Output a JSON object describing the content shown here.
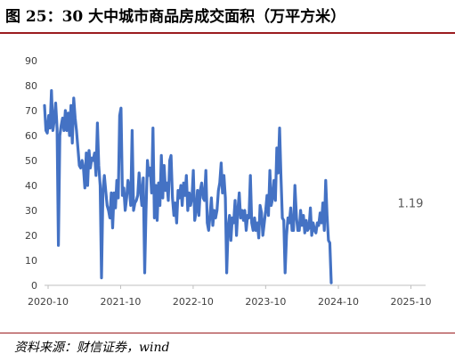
{
  "title": "图 25：30 大中城市商品房成交面积（万平方米）",
  "source": "资料来源：财信证券，wind",
  "colors": {
    "series": "#4472c4",
    "title_rule": "#9b1c1f",
    "axis_text": "#404040",
    "annotation": "#595959"
  },
  "chart_data": {
    "type": "line",
    "title": "30 大中城市商品房成交面积（万平方米）",
    "xlabel": "",
    "ylabel": "",
    "ylim": [
      0,
      90
    ],
    "yticks": [
      0,
      10,
      20,
      30,
      40,
      50,
      60,
      70,
      80,
      90
    ],
    "xlim": [
      "2020-09-13",
      "2025-12-14"
    ],
    "xtick_labels": [
      "2020-10",
      "2021-10",
      "2022-10",
      "2023-10",
      "2024-10",
      "2025-10"
    ],
    "grid": false,
    "legend": "none",
    "annotation": {
      "text": "1.19",
      "x": "2025-12-07",
      "y": 1.19
    },
    "series": [
      {
        "values": [
          [
            "2020-09-13",
            72
          ],
          [
            "2020-09-20",
            62
          ],
          [
            "2020-09-27",
            61
          ],
          [
            "2020-10-04",
            68
          ],
          [
            "2020-10-11",
            63
          ],
          [
            "2020-10-18",
            78
          ],
          [
            "2020-10-25",
            62
          ],
          [
            "2020-11-01",
            66
          ],
          [
            "2020-11-08",
            73
          ],
          [
            "2020-11-15",
            63
          ],
          [
            "2020-11-22",
            16
          ],
          [
            "2020-11-29",
            60
          ],
          [
            "2020-12-06",
            64
          ],
          [
            "2020-12-13",
            67
          ],
          [
            "2020-12-20",
            62
          ],
          [
            "2020-12-27",
            70
          ],
          [
            "2021-01-03",
            62
          ],
          [
            "2021-01-10",
            69
          ],
          [
            "2021-01-17",
            60
          ],
          [
            "2021-01-24",
            72
          ],
          [
            "2021-01-31",
            57
          ],
          [
            "2021-02-07",
            75
          ],
          [
            "2021-02-14",
            67
          ],
          [
            "2021-02-21",
            62
          ],
          [
            "2021-02-28",
            55
          ],
          [
            "2021-03-07",
            48
          ],
          [
            "2021-03-14",
            47
          ],
          [
            "2021-03-21",
            50
          ],
          [
            "2021-03-28",
            47
          ],
          [
            "2021-04-04",
            39
          ],
          [
            "2021-04-11",
            53
          ],
          [
            "2021-04-18",
            40
          ],
          [
            "2021-04-25",
            54
          ],
          [
            "2021-05-02",
            47
          ],
          [
            "2021-05-09",
            51
          ],
          [
            "2021-05-16",
            50
          ],
          [
            "2021-05-23",
            53
          ],
          [
            "2021-05-30",
            44
          ],
          [
            "2021-06-06",
            65
          ],
          [
            "2021-06-13",
            48
          ],
          [
            "2021-06-20",
            40
          ],
          [
            "2021-06-27",
            3
          ],
          [
            "2021-07-04",
            38
          ],
          [
            "2021-07-11",
            44
          ],
          [
            "2021-07-18",
            38
          ],
          [
            "2021-07-25",
            32
          ],
          [
            "2021-08-01",
            30
          ],
          [
            "2021-08-08",
            27
          ],
          [
            "2021-08-15",
            37
          ],
          [
            "2021-08-22",
            23
          ],
          [
            "2021-08-29",
            37
          ],
          [
            "2021-09-05",
            31
          ],
          [
            "2021-09-12",
            42
          ],
          [
            "2021-09-19",
            35
          ],
          [
            "2021-09-26",
            68
          ],
          [
            "2021-10-03",
            71
          ],
          [
            "2021-10-10",
            36
          ],
          [
            "2021-10-17",
            39
          ],
          [
            "2021-10-24",
            30
          ],
          [
            "2021-10-31",
            35
          ],
          [
            "2021-11-07",
            42
          ],
          [
            "2021-11-14",
            39
          ],
          [
            "2021-11-21",
            32
          ],
          [
            "2021-11-28",
            62
          ],
          [
            "2021-12-05",
            30
          ],
          [
            "2021-12-12",
            33
          ],
          [
            "2021-12-19",
            34
          ],
          [
            "2021-12-26",
            36
          ],
          [
            "2022-01-02",
            45
          ],
          [
            "2022-01-09",
            38
          ],
          [
            "2022-01-16",
            32
          ],
          [
            "2022-01-23",
            43
          ],
          [
            "2022-01-30",
            5
          ],
          [
            "2022-02-06",
            30
          ],
          [
            "2022-02-13",
            50
          ],
          [
            "2022-02-20",
            44
          ],
          [
            "2022-02-27",
            47
          ],
          [
            "2022-03-06",
            37
          ],
          [
            "2022-03-13",
            63
          ],
          [
            "2022-03-20",
            27
          ],
          [
            "2022-03-27",
            40
          ],
          [
            "2022-04-03",
            26
          ],
          [
            "2022-04-10",
            41
          ],
          [
            "2022-04-17",
            32
          ],
          [
            "2022-04-24",
            52
          ],
          [
            "2022-05-01",
            35
          ],
          [
            "2022-05-08",
            48
          ],
          [
            "2022-05-15",
            38
          ],
          [
            "2022-05-22",
            41
          ],
          [
            "2022-05-29",
            34
          ],
          [
            "2022-06-05",
            50
          ],
          [
            "2022-06-12",
            52
          ],
          [
            "2022-06-19",
            35
          ],
          [
            "2022-06-26",
            28
          ],
          [
            "2022-07-03",
            33
          ],
          [
            "2022-07-10",
            25
          ],
          [
            "2022-07-17",
            38
          ],
          [
            "2022-07-24",
            35
          ],
          [
            "2022-07-31",
            40
          ],
          [
            "2022-08-07",
            32
          ],
          [
            "2022-08-14",
            41
          ],
          [
            "2022-08-21",
            36
          ],
          [
            "2022-08-28",
            44
          ],
          [
            "2022-09-04",
            30
          ],
          [
            "2022-09-11",
            37
          ],
          [
            "2022-09-18",
            32
          ],
          [
            "2022-09-25",
            35
          ],
          [
            "2022-10-02",
            46
          ],
          [
            "2022-10-09",
            26
          ],
          [
            "2022-10-16",
            30
          ],
          [
            "2022-10-23",
            38
          ],
          [
            "2022-10-30",
            28
          ],
          [
            "2022-11-06",
            38
          ],
          [
            "2022-11-13",
            41
          ],
          [
            "2022-11-20",
            35
          ],
          [
            "2022-11-27",
            34
          ],
          [
            "2022-12-04",
            46
          ],
          [
            "2022-12-11",
            25
          ],
          [
            "2022-12-18",
            22
          ],
          [
            "2022-12-25",
            28
          ],
          [
            "2023-01-01",
            35
          ],
          [
            "2023-01-08",
            24
          ],
          [
            "2023-01-15",
            30
          ],
          [
            "2023-01-22",
            27
          ],
          [
            "2023-01-29",
            30
          ],
          [
            "2023-02-05",
            38
          ],
          [
            "2023-02-12",
            41
          ],
          [
            "2023-02-19",
            49
          ],
          [
            "2023-02-26",
            37
          ],
          [
            "2023-03-05",
            44
          ],
          [
            "2023-03-12",
            35
          ],
          [
            "2023-03-19",
            5
          ],
          [
            "2023-03-26",
            23
          ],
          [
            "2023-04-02",
            28
          ],
          [
            "2023-04-09",
            18
          ],
          [
            "2023-04-16",
            27
          ],
          [
            "2023-04-23",
            25
          ],
          [
            "2023-04-30",
            34
          ],
          [
            "2023-05-07",
            20
          ],
          [
            "2023-05-14",
            30
          ],
          [
            "2023-05-21",
            37
          ],
          [
            "2023-05-28",
            27
          ],
          [
            "2023-06-04",
            30
          ],
          [
            "2023-06-11",
            26
          ],
          [
            "2023-06-18",
            30
          ],
          [
            "2023-06-25",
            22
          ],
          [
            "2023-07-02",
            28
          ],
          [
            "2023-07-09",
            27
          ],
          [
            "2023-07-16",
            44
          ],
          [
            "2023-07-23",
            25
          ],
          [
            "2023-07-30",
            22
          ],
          [
            "2023-08-06",
            27
          ],
          [
            "2023-08-13",
            22
          ],
          [
            "2023-08-20",
            25
          ],
          [
            "2023-08-27",
            19
          ],
          [
            "2023-09-03",
            32
          ],
          [
            "2023-09-10",
            29
          ],
          [
            "2023-09-17",
            20
          ],
          [
            "2023-09-24",
            25
          ],
          [
            "2023-10-01",
            30
          ],
          [
            "2023-10-08",
            36
          ],
          [
            "2023-10-15",
            28
          ],
          [
            "2023-10-22",
            46
          ],
          [
            "2023-10-29",
            32
          ],
          [
            "2023-11-05",
            35
          ],
          [
            "2023-11-12",
            42
          ],
          [
            "2023-11-19",
            34
          ],
          [
            "2023-11-26",
            55
          ],
          [
            "2023-12-03",
            45
          ],
          [
            "2023-12-10",
            63
          ],
          [
            "2023-12-17",
            44
          ],
          [
            "2023-12-24",
            27
          ],
          [
            "2023-12-31",
            26
          ],
          [
            "2024-01-07",
            5
          ],
          [
            "2024-01-14",
            20
          ],
          [
            "2024-01-21",
            27
          ],
          [
            "2024-01-28",
            25
          ],
          [
            "2024-02-04",
            31
          ],
          [
            "2024-02-11",
            22
          ],
          [
            "2024-02-18",
            22
          ],
          [
            "2024-02-25",
            40
          ],
          [
            "2024-03-04",
            27
          ],
          [
            "2024-03-11",
            22
          ],
          [
            "2024-03-18",
            22
          ],
          [
            "2024-03-25",
            30
          ],
          [
            "2024-04-01",
            24
          ],
          [
            "2024-04-08",
            28
          ],
          [
            "2024-04-15",
            21
          ],
          [
            "2024-04-22",
            26
          ],
          [
            "2024-04-29",
            22
          ],
          [
            "2024-05-06",
            23
          ],
          [
            "2024-05-13",
            31
          ],
          [
            "2024-05-20",
            20
          ],
          [
            "2024-05-27",
            25
          ],
          [
            "2024-06-03",
            22
          ],
          [
            "2024-06-10",
            21
          ],
          [
            "2024-06-17",
            25
          ],
          [
            "2024-06-24",
            24
          ],
          [
            "2024-07-01",
            29
          ],
          [
            "2024-07-08",
            25
          ],
          [
            "2024-07-15",
            33
          ],
          [
            "2024-07-22",
            22
          ],
          [
            "2024-07-29",
            42
          ],
          [
            "2024-08-05",
            28
          ],
          [
            "2024-08-12",
            18
          ],
          [
            "2024-08-19",
            17
          ],
          [
            "2024-08-26",
            1
          ]
        ]
      }
    ]
  }
}
